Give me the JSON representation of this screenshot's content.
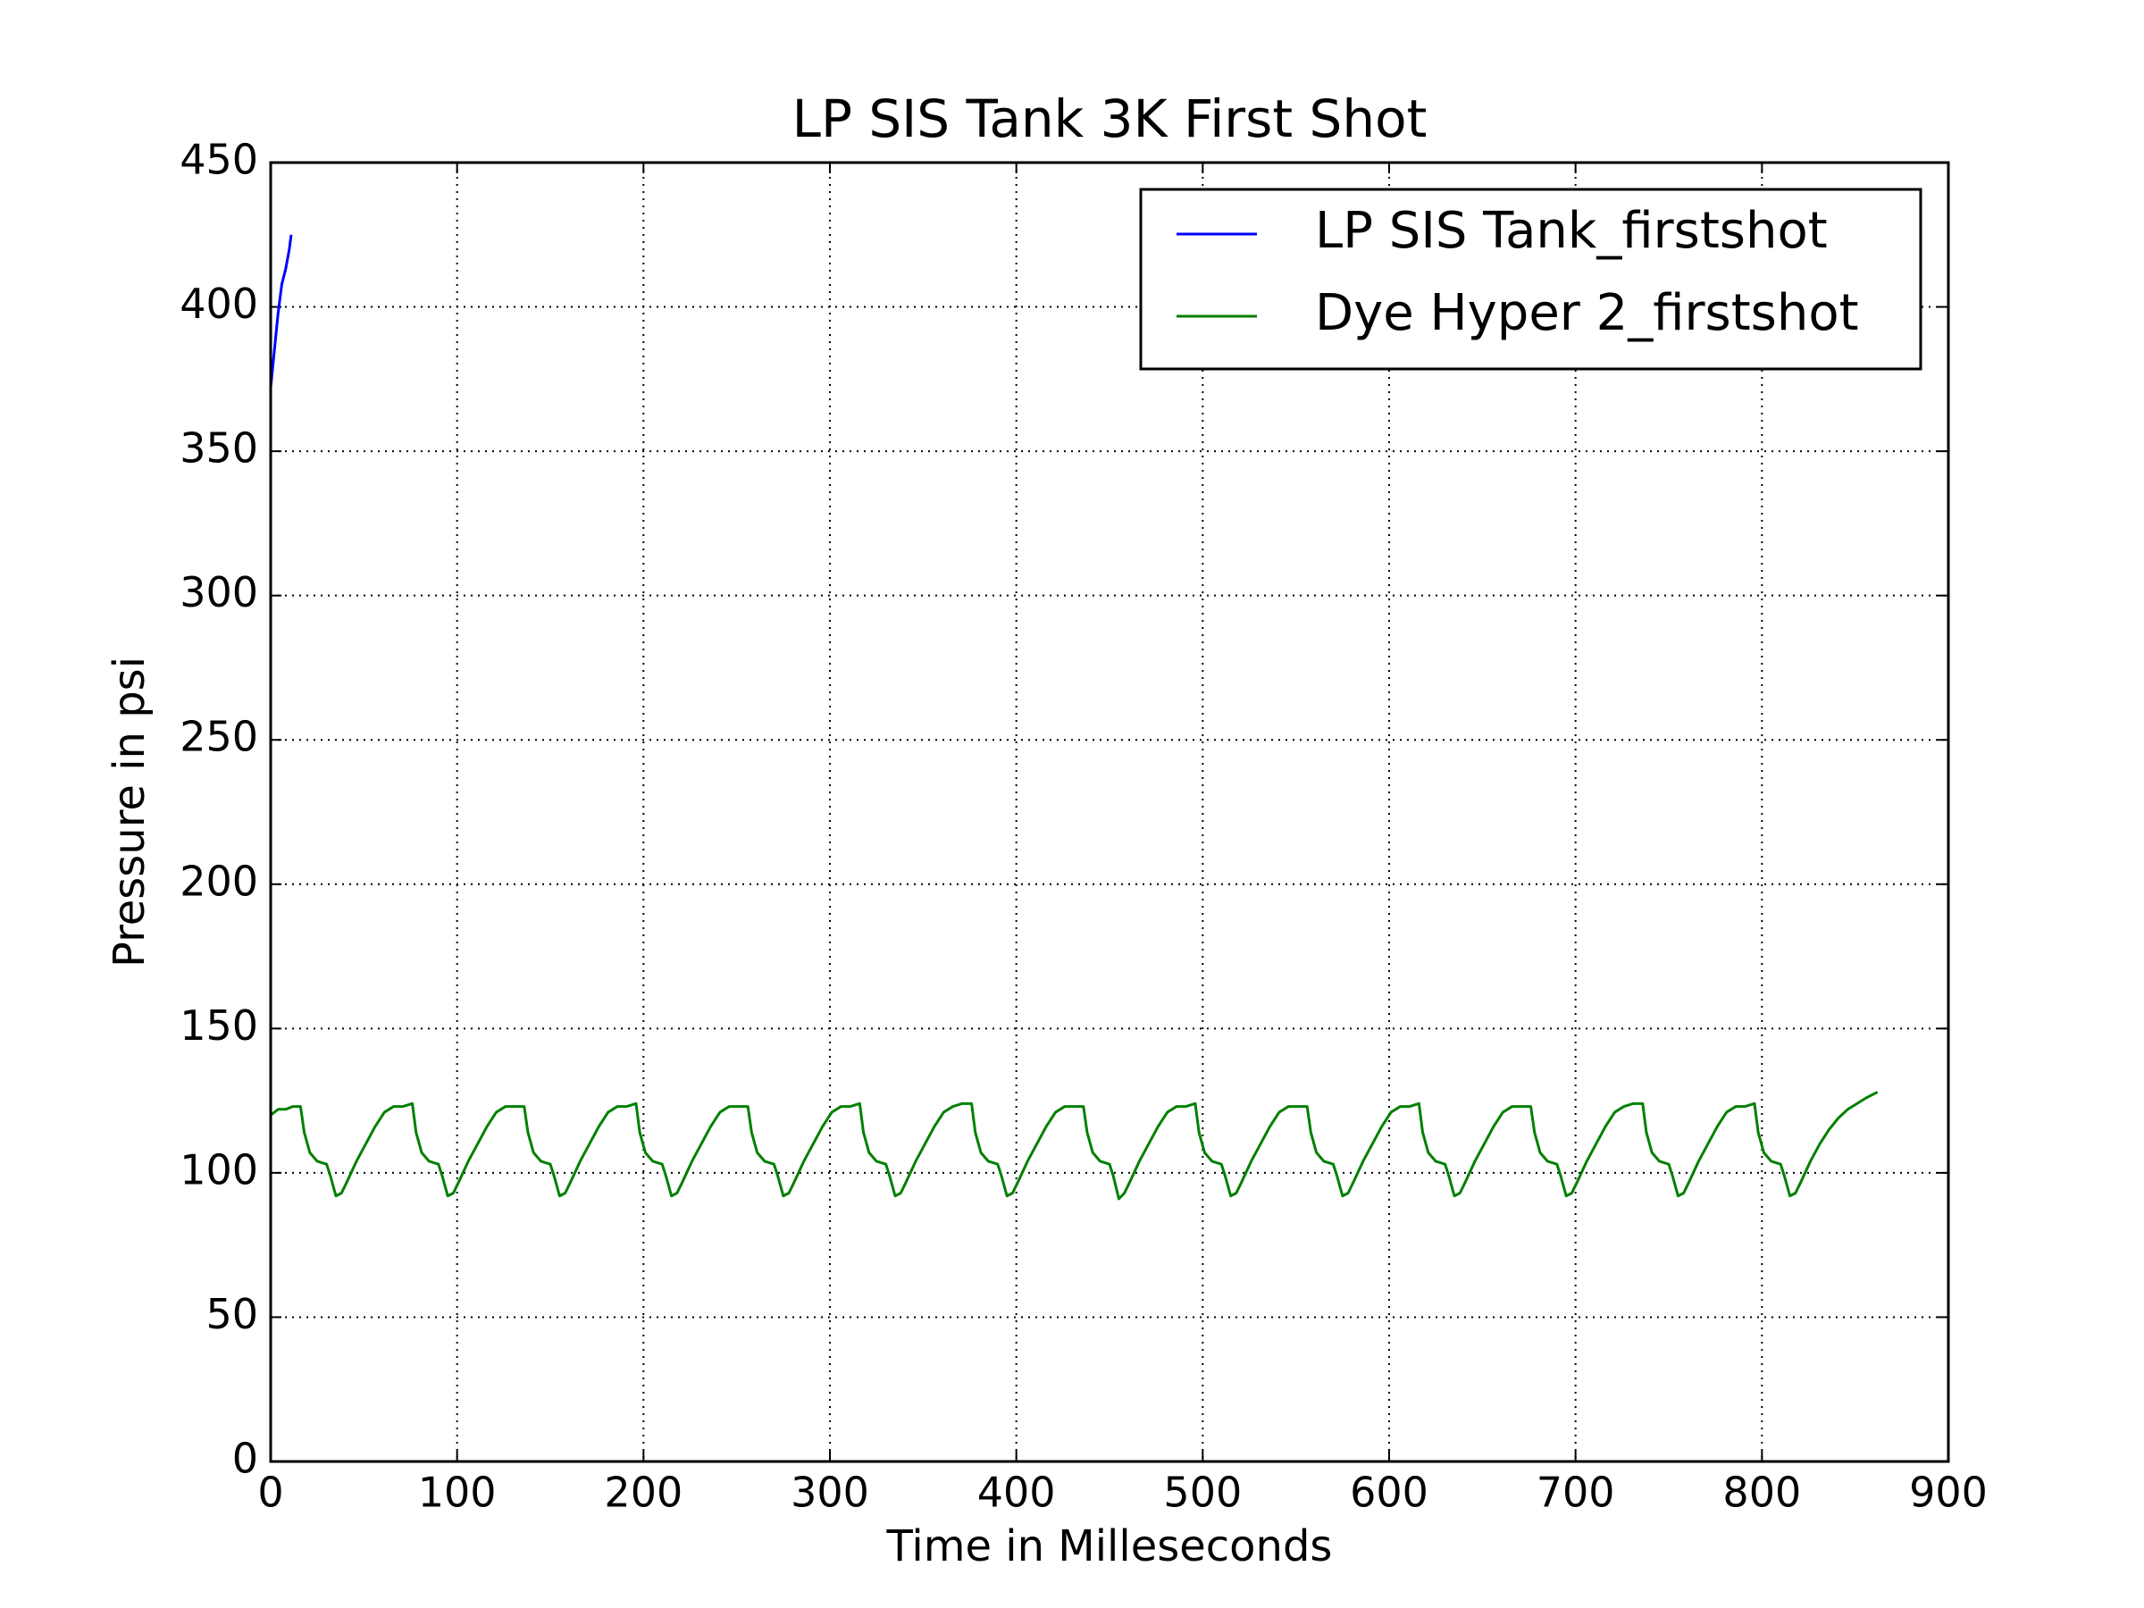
{
  "chart_data": {
    "type": "line",
    "title": "LP SIS Tank 3K First Shot",
    "x_label": "Time in Milleseconds",
    "y_label": "Pressure in psi",
    "xlim": [
      0,
      900
    ],
    "xticks": [
      0,
      100,
      200,
      300,
      400,
      500,
      600,
      700,
      800,
      900
    ],
    "ylim": [
      0,
      450
    ],
    "yticks": [
      0,
      50,
      100,
      150,
      200,
      250,
      300,
      350,
      400,
      450
    ],
    "grid": true,
    "legend": "upper right",
    "series": [
      {
        "name": "LP SIS Tank_firstshot",
        "color": "#0000ff",
        "x": [
          0,
          2,
          4,
          6,
          8,
          10,
          11
        ],
        "values": [
          372,
          385,
          398,
          408,
          413,
          420,
          425
        ]
      },
      {
        "name": "Dye Hyper 2_firstshot",
        "color": "#008000",
        "x": [
          0,
          4,
          8,
          12,
          16,
          18,
          21,
          25,
          30,
          32,
          35,
          38,
          41,
          46,
          51,
          56,
          61,
          66,
          71,
          76,
          78,
          81,
          85,
          90,
          92,
          95,
          98,
          101,
          106,
          111,
          116,
          121,
          126,
          131,
          136,
          138,
          141,
          145,
          150,
          152,
          155,
          158,
          161,
          166,
          171,
          176,
          181,
          186,
          191,
          196,
          198,
          201,
          205,
          210,
          212,
          215,
          218,
          221,
          226,
          231,
          236,
          241,
          246,
          251,
          256,
          258,
          261,
          265,
          270,
          272,
          275,
          278,
          281,
          286,
          291,
          296,
          301,
          306,
          311,
          316,
          318,
          321,
          325,
          330,
          332,
          335,
          338,
          341,
          346,
          351,
          356,
          361,
          366,
          371,
          376,
          378,
          381,
          385,
          390,
          392,
          395,
          398,
          401,
          406,
          411,
          416,
          421,
          426,
          431,
          436,
          438,
          441,
          445,
          450,
          452,
          455,
          458,
          461,
          466,
          471,
          476,
          481,
          486,
          491,
          496,
          498,
          501,
          505,
          510,
          512,
          515,
          518,
          521,
          526,
          531,
          536,
          541,
          546,
          551,
          556,
          558,
          561,
          565,
          570,
          572,
          575,
          578,
          581,
          586,
          591,
          596,
          601,
          606,
          611,
          616,
          618,
          621,
          625,
          630,
          632,
          635,
          638,
          641,
          646,
          651,
          656,
          661,
          666,
          671,
          676,
          678,
          681,
          685,
          690,
          692,
          695,
          698,
          701,
          706,
          711,
          716,
          721,
          726,
          731,
          736,
          738,
          741,
          745,
          750,
          752,
          755,
          758,
          761,
          766,
          771,
          776,
          781,
          786,
          791,
          796,
          798,
          801,
          805,
          810,
          812,
          815,
          818,
          821,
          826,
          831,
          836,
          841,
          846,
          851,
          856,
          862
        ],
        "values": [
          120,
          122,
          122,
          123,
          123,
          114,
          107,
          104,
          103,
          99,
          92,
          93,
          97,
          104,
          110,
          116,
          121,
          123,
          123,
          124,
          114,
          107,
          104,
          103,
          99,
          92,
          93,
          97,
          104,
          110,
          116,
          121,
          123,
          123,
          123,
          114,
          107,
          104,
          103,
          99,
          92,
          93,
          97,
          104,
          110,
          116,
          121,
          123,
          123,
          124,
          114,
          107,
          104,
          103,
          99,
          92,
          93,
          97,
          104,
          110,
          116,
          121,
          123,
          123,
          123,
          114,
          107,
          104,
          103,
          99,
          92,
          93,
          97,
          104,
          110,
          116,
          121,
          123,
          123,
          124,
          114,
          107,
          104,
          103,
          99,
          92,
          93,
          97,
          104,
          110,
          116,
          121,
          123,
          124,
          124,
          114,
          107,
          104,
          103,
          99,
          92,
          93,
          97,
          104,
          110,
          116,
          121,
          123,
          123,
          123,
          114,
          107,
          104,
          103,
          99,
          91,
          93,
          97,
          104,
          110,
          116,
          121,
          123,
          123,
          124,
          114,
          107,
          104,
          103,
          99,
          92,
          93,
          97,
          104,
          110,
          116,
          121,
          123,
          123,
          123,
          114,
          107,
          104,
          103,
          99,
          92,
          93,
          97,
          104,
          110,
          116,
          121,
          123,
          123,
          124,
          114,
          107,
          104,
          103,
          99,
          92,
          93,
          97,
          104,
          110,
          116,
          121,
          123,
          123,
          123,
          114,
          107,
          104,
          103,
          99,
          92,
          93,
          97,
          104,
          110,
          116,
          121,
          123,
          124,
          124,
          114,
          107,
          104,
          103,
          99,
          92,
          93,
          97,
          104,
          110,
          116,
          121,
          123,
          123,
          124,
          114,
          107,
          104,
          103,
          99,
          92,
          93,
          97,
          104,
          110,
          115,
          119,
          122,
          124,
          126,
          128
        ]
      }
    ]
  }
}
